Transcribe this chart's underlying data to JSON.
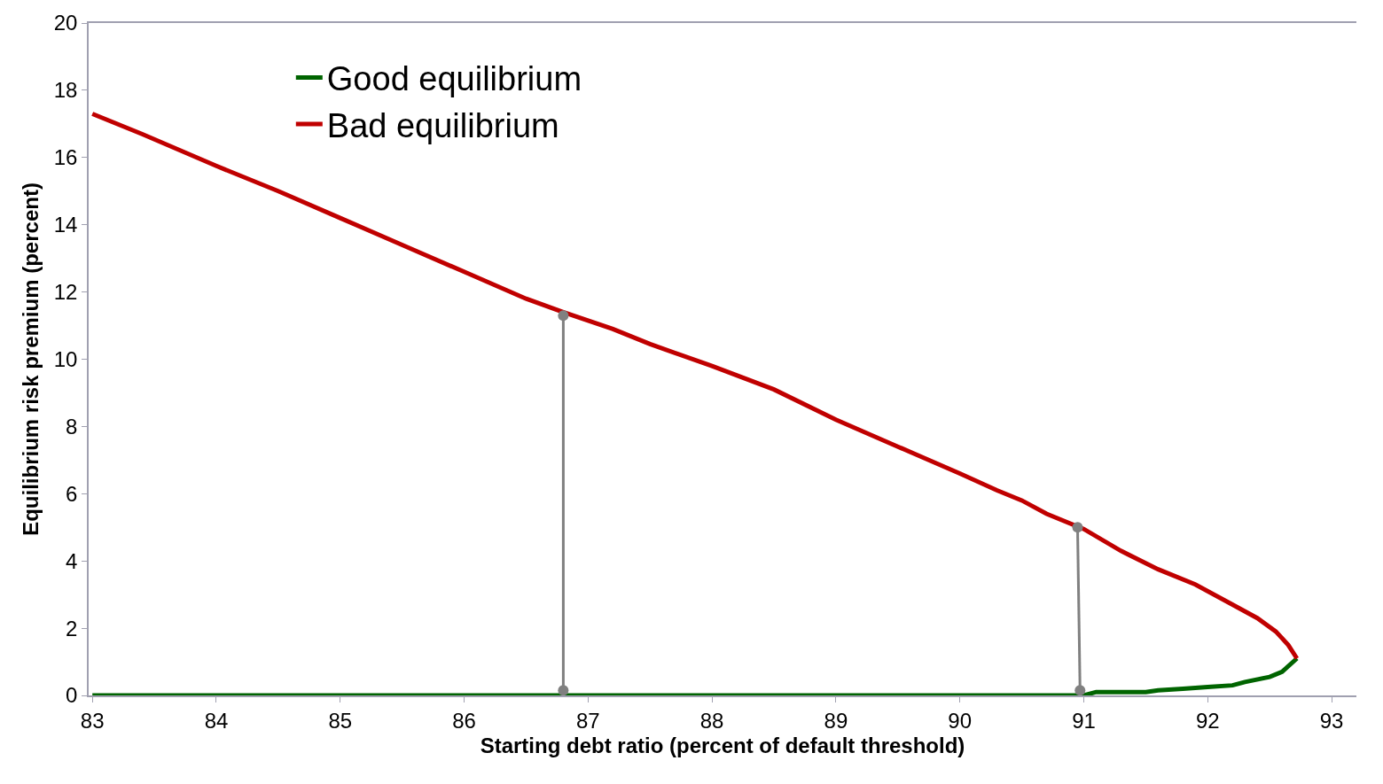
{
  "chart_data": {
    "type": "line",
    "xlabel": "Starting debt ratio (percent of default threshold)",
    "ylabel": "Equilibrium risk premium (percent)",
    "xlim": [
      82.97,
      93.2
    ],
    "xticks": [
      83,
      84,
      85,
      86,
      87,
      88,
      89,
      90,
      91,
      92,
      93
    ],
    "ylim": [
      0,
      20
    ],
    "yticks": [
      0,
      2,
      4,
      6,
      8,
      10,
      12,
      14,
      16,
      18,
      20
    ],
    "legend": "top left",
    "marker": "none",
    "line_style": "solid",
    "series": [
      {
        "name": "Good equilibrium",
        "color": "#006400",
        "x": [
          83,
          84,
          85,
          86,
          87,
          88,
          89,
          90,
          91,
          91.1,
          91.5,
          91.6,
          91.8,
          92,
          92.2,
          92.3,
          92.5,
          92.6,
          92.72
        ],
        "values": [
          0,
          0,
          0,
          0,
          0,
          0,
          0,
          0,
          0,
          0.1,
          0.1,
          0.15,
          0.2,
          0.25,
          0.3,
          0.4,
          0.55,
          0.7,
          1.1
        ]
      },
      {
        "name": "Bad equilibrium",
        "color": "#c00000",
        "x": [
          83,
          83.4,
          84,
          84.5,
          85,
          85.5,
          86,
          86.5,
          86.8,
          87.2,
          87.5,
          88,
          88.5,
          89,
          89.5,
          90,
          90.3,
          90.5,
          90.7,
          91,
          91.3,
          91.6,
          91.9,
          92.2,
          92.4,
          92.55,
          92.65,
          92.72
        ],
        "values": [
          17.3,
          16.7,
          15.75,
          15.0,
          14.2,
          13.4,
          12.6,
          11.8,
          11.4,
          10.9,
          10.45,
          9.8,
          9.1,
          8.2,
          7.4,
          6.6,
          6.1,
          5.8,
          5.4,
          4.95,
          4.3,
          3.75,
          3.3,
          2.7,
          2.3,
          1.9,
          1.5,
          1.1
        ]
      },
      {
        "color": "#808080",
        "marker": "circle",
        "x": [
          86.8,
          86.8
        ],
        "values": [
          11.3,
          0.15
        ]
      },
      {
        "color": "#808080",
        "marker": "circle",
        "x": [
          90.95,
          90.97
        ],
        "values": [
          5.0,
          0.15
        ]
      }
    ]
  }
}
